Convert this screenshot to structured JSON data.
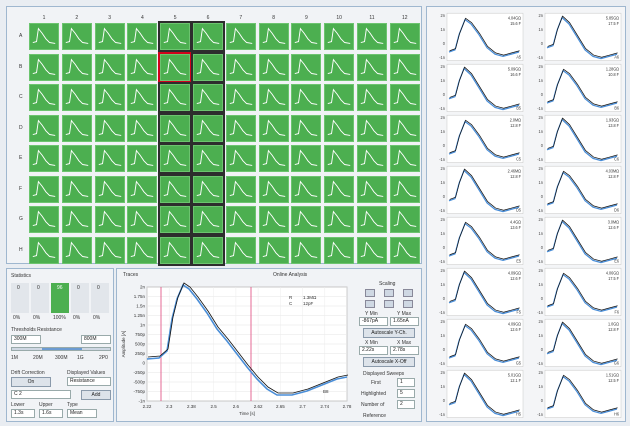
{
  "plate": {
    "columns": [
      "1",
      "2",
      "3",
      "4",
      "5",
      "6",
      "7",
      "8",
      "9",
      "10",
      "11",
      "12"
    ],
    "rows": [
      "A",
      "B",
      "C",
      "D",
      "E",
      "F",
      "G",
      "H"
    ],
    "selected_columns": [
      "5",
      "6"
    ],
    "active_well": "B5"
  },
  "statistics": {
    "title": "Statistics",
    "columns": [
      "0",
      "0",
      "96",
      "0",
      "0"
    ],
    "percents": [
      "0%",
      "0%",
      "100%",
      "0%",
      "0%"
    ],
    "threshold_title": "Thresholds Resistance",
    "threshold_low": "300M",
    "threshold_high": "800M",
    "scale_labels": [
      "1M",
      "20M",
      "300M",
      "1G",
      "2P0"
    ],
    "drift_label": "Drift Correction",
    "drift_button": "On",
    "displayed_values_label": "Displayed Values",
    "displayed_values": "Resistance",
    "combo_value": "C 2",
    "add_button": "Add",
    "lower_label": "Lower",
    "upper_label": "Upper",
    "type_label": "Type",
    "lower_value": "1.3s",
    "upper_value": "1.6s",
    "type_value": "Mean"
  },
  "trace": {
    "tab_traces": "Traces",
    "tab_online": "Online Analysis",
    "legend_r_label": "R",
    "legend_r_value": "1.3MΩ",
    "legend_c_label": "C",
    "legend_c_value": "12pF",
    "corner_label": "B8",
    "ylabel": "Amplitude [A]",
    "xlabel": "Time [s]",
    "yticks": [
      "2n",
      "1.75n",
      "1.5n",
      "1.25n",
      "1n",
      "750p",
      "500p",
      "250p",
      "0",
      "-250p",
      "-500p",
      "-750p",
      "-1n"
    ],
    "xticks": [
      "2.22",
      "2.3",
      "2.38",
      "2.5",
      "2.6",
      "2.62",
      "2.65",
      "2.7",
      "2.74",
      "2.78"
    ]
  },
  "scaling": {
    "title": "Scaling",
    "ymin_label": "Y Min",
    "ymax_label": "Y Max",
    "ymin_value": "-867pA",
    "ymax_value": "1.65nA",
    "autoscale_y": "Autoscale Y-Ch.",
    "xmin_label": "X Min",
    "xmax_label": "X Max",
    "xmin_value": "2.22s",
    "xmax_value": "2.78s",
    "autoscale_x": "Autoscale X-Off",
    "sweeps_title": "Displayed Sweeps",
    "first_label": "First",
    "first_value": "1",
    "highlighted_label": "Highlighted",
    "highlighted_value": "5",
    "number_label": "Number of",
    "number_value": "2",
    "reference_label": "Reference"
  },
  "panel": {
    "left_labels": [
      [
        "4.04GΩ",
        "15.6 F"
      ],
      [
        "5.09GΩ",
        "16.6 F"
      ],
      [
        "2.0MΩ",
        "12.8 F"
      ],
      [
        "2.46MΩ",
        "12.8 F"
      ],
      [
        "4.4GΩ",
        "13.6 F"
      ],
      [
        "4.09GΩ",
        "12.6 F"
      ],
      [
        "4.09GΩ",
        "12.6 F"
      ],
      [
        "5.01GΩ",
        "12.1 F"
      ]
    ],
    "right_labels": [
      [
        "5.85GΩ",
        "17.5 F"
      ],
      [
        "1.28GΩ",
        "10.8 F"
      ],
      [
        "1.93GΩ",
        "13.8 F"
      ],
      [
        "4.03MΩ",
        "12.8 F"
      ],
      [
        "3.0MΩ",
        "12.6 F"
      ],
      [
        "4.06GΩ",
        "17.5 F"
      ],
      [
        "1.0GΩ",
        "12.8 F"
      ],
      [
        "1.51GΩ",
        "12.5 F"
      ]
    ],
    "left_ids": [
      "A5",
      "B5",
      "C5",
      "D5",
      "E5",
      "F5",
      "G5",
      "H5"
    ],
    "right_ids": [
      "A6",
      "B6",
      "C6",
      "D6",
      "E6",
      "F6",
      "G6",
      "H6"
    ],
    "yticks": [
      "2n",
      "1n",
      "0",
      "-1n"
    ]
  }
}
